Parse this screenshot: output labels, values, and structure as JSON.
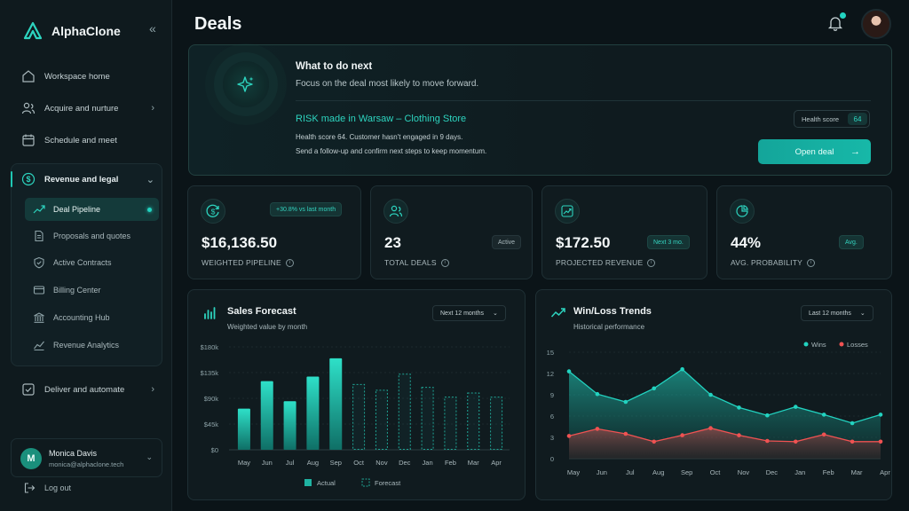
{
  "app": {
    "name": "AlphaClone",
    "collapse_icon": "double-chevron-left-icon"
  },
  "nav": {
    "items": [
      {
        "label": "Workspace home",
        "icon": "home-icon"
      },
      {
        "label": "Acquire and nurture",
        "icon": "users-icon"
      },
      {
        "label": "Schedule and meet",
        "icon": "calendar-icon"
      }
    ],
    "group": {
      "label": "Revenue and legal",
      "icon": "dollar-circle-icon",
      "sub_items": [
        {
          "label": "Deal Pipeline",
          "active": true,
          "icon": "trend-up-icon"
        },
        {
          "label": "Proposals and quotes",
          "icon": "document-icon"
        },
        {
          "label": "Active Contracts",
          "icon": "shield-check-icon"
        },
        {
          "label": "Billing Center",
          "icon": "credit-card-icon"
        },
        {
          "label": "Accounting Hub",
          "icon": "bank-icon"
        },
        {
          "label": "Revenue Analytics",
          "icon": "chart-line-icon"
        }
      ]
    },
    "after": {
      "label": "Deliver and automate",
      "icon": "check-square-icon"
    }
  },
  "user": {
    "initial": "M",
    "name": "Monica Davis",
    "email": "monica@alphaclone.tech"
  },
  "logout": {
    "label": "Log out"
  },
  "page": {
    "title": "Deals"
  },
  "hero": {
    "heading": "What to do next",
    "subheading": "Focus on the deal most likely to move forward.",
    "deal_title": "RISK made in Warsaw – Clothing Store",
    "detail_1": "Health score 64. Customer hasn't engaged in 9 days.",
    "detail_2": "Send a follow-up and confirm next steps to keep momentum.",
    "health_label": "Health score",
    "health_value": "64",
    "open_button": "Open deal"
  },
  "stats": [
    {
      "value": "$16,136.50",
      "label": "WEIGHTED PIPELINE",
      "badge": "+30.8% vs last month",
      "badge_style": "teal"
    },
    {
      "value": "23",
      "label": "TOTAL DEALS",
      "badge": "Active",
      "badge_style": "grey"
    },
    {
      "value": "$172.50",
      "label": "PROJECTED REVENUE",
      "badge": "Next 3 mo.",
      "badge_style": "teal"
    },
    {
      "value": "44%",
      "label": "AVG. PROBABILITY",
      "badge": "Avg.",
      "badge_style": "teal"
    }
  ],
  "sales_forecast": {
    "title": "Sales Forecast",
    "subtitle": "Weighted value by month",
    "range": "Next 12 months",
    "legend_actual": "Actual",
    "legend_forecast": "Forecast"
  },
  "win_loss": {
    "title": "Win/Loss Trends",
    "subtitle": "Historical performance",
    "range": "Last 12 months",
    "legend_wins": "Wins",
    "legend_losses": "Losses"
  },
  "chart_data": [
    {
      "type": "bar",
      "categories": [
        "May",
        "Jun",
        "Jul",
        "Aug",
        "Sep",
        "Oct",
        "Nov",
        "Dec",
        "Jan",
        "Feb",
        "Mar",
        "Apr"
      ],
      "series": [
        {
          "name": "Actual",
          "values": [
            72000,
            120000,
            85000,
            128000,
            160000,
            null,
            null,
            null,
            null,
            null,
            null,
            null
          ]
        },
        {
          "name": "Forecast",
          "values": [
            null,
            null,
            null,
            null,
            null,
            115000,
            105000,
            133000,
            110000,
            93000,
            100000,
            93000
          ]
        }
      ],
      "yticks": [
        "$0",
        "$45k",
        "$90k",
        "$135k",
        "$180k"
      ],
      "ylim": [
        0,
        180000
      ]
    },
    {
      "type": "area",
      "categories": [
        "May",
        "Jun",
        "Jul",
        "Aug",
        "Sep",
        "Oct",
        "Nov",
        "Dec",
        "Jan",
        "Feb",
        "Mar",
        "Apr"
      ],
      "series": [
        {
          "name": "Wins",
          "values": [
            12.3,
            9.1,
            8.0,
            9.9,
            12.6,
            9.0,
            7.2,
            6.1,
            7.3,
            6.2,
            5.0,
            6.2
          ]
        },
        {
          "name": "Losses",
          "values": [
            3.2,
            4.2,
            3.5,
            2.4,
            3.3,
            4.3,
            3.3,
            2.5,
            2.4,
            3.4,
            2.4,
            2.4
          ]
        }
      ],
      "yticks": [
        "0",
        "3",
        "6",
        "9",
        "12",
        "15"
      ],
      "ylim": [
        0,
        15
      ],
      "colors": {
        "wins": "#22d3c0",
        "losses": "#f05252"
      }
    }
  ]
}
